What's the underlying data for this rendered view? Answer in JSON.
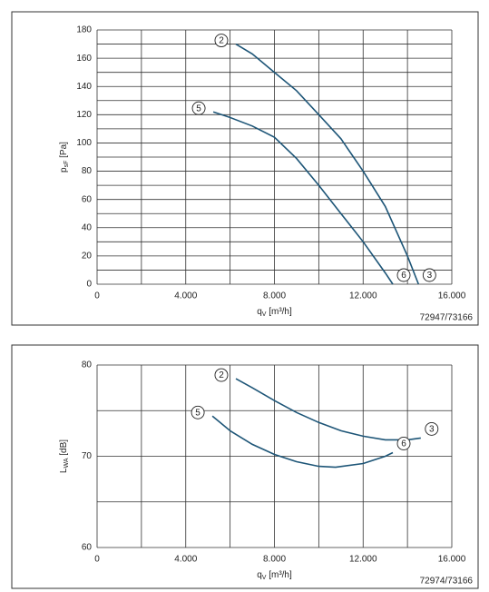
{
  "chart_data": [
    {
      "type": "line",
      "ylabel": {
        "main": "p",
        "sub": "sF",
        "unit": " [Pa]"
      },
      "xlabel": {
        "main": "q",
        "sub": "V",
        "unit": " [m³/h]"
      },
      "note": "72947/73166",
      "xlim": [
        0,
        16000
      ],
      "xticks": [
        0,
        {
          "value": 4000,
          "label": "4.000"
        },
        {
          "value": 8000,
          "label": "8.000"
        },
        {
          "value": 12000,
          "label": "12.000"
        },
        {
          "value": 16000,
          "label": "16.000"
        }
      ],
      "x_minor_grid": [
        2000,
        6000,
        10000,
        14000
      ],
      "ylim": [
        0,
        180
      ],
      "yticks": [
        0,
        20,
        40,
        60,
        80,
        100,
        120,
        140,
        160,
        180
      ],
      "y_minor_grid": [
        10,
        30,
        50,
        70,
        90,
        110,
        130,
        150,
        170
      ],
      "grid": true,
      "series": [
        {
          "name": "2",
          "end_label": "3",
          "color": "#1d5577",
          "x": [
            6260,
            7000,
            8000,
            9000,
            10000,
            11000,
            12000,
            13000,
            14000,
            14500
          ],
          "values": [
            170,
            163,
            150,
            137,
            120,
            103,
            80,
            55,
            20,
            0
          ]
        },
        {
          "name": "5",
          "end_label": "6",
          "color": "#1d5577",
          "x": [
            5240,
            6000,
            7000,
            8000,
            9000,
            10000,
            11000,
            12000,
            13000,
            13340
          ],
          "values": [
            122,
            118,
            112,
            104,
            89,
            70,
            50,
            30,
            8,
            0
          ]
        }
      ]
    },
    {
      "type": "line",
      "ylabel": {
        "main": "L",
        "sub": "WA",
        "unit": " [dB]"
      },
      "xlabel": {
        "main": "q",
        "sub": "V",
        "unit": " [m³/h]"
      },
      "note": "72974/73166",
      "xlim": [
        0,
        16000
      ],
      "xticks": [
        0,
        {
          "value": 4000,
          "label": "4.000"
        },
        {
          "value": 8000,
          "label": "8.000"
        },
        {
          "value": 12000,
          "label": "12.000"
        },
        {
          "value": 16000,
          "label": "16.000"
        }
      ],
      "x_minor_grid": [
        2000,
        6000,
        10000,
        14000
      ],
      "ylim": [
        60,
        80
      ],
      "yticks": [
        60,
        70,
        80
      ],
      "y_minor_grid": [
        65,
        75
      ],
      "grid": true,
      "series": [
        {
          "name": "2",
          "end_label": "3",
          "color": "#1d5577",
          "x": [
            6260,
            7000,
            8000,
            9000,
            10000,
            11000,
            12000,
            13000,
            14000,
            14600
          ],
          "values": [
            78.5,
            77.5,
            76.1,
            74.8,
            73.7,
            72.8,
            72.2,
            71.8,
            71.8,
            72.0
          ]
        },
        {
          "name": "5",
          "end_label": "6",
          "color": "#1d5577",
          "x": [
            5200,
            6000,
            7000,
            8000,
            9000,
            10000,
            10760,
            12000,
            13000,
            13340
          ],
          "values": [
            74.4,
            72.8,
            71.3,
            70.2,
            69.4,
            68.9,
            68.8,
            69.2,
            70.0,
            70.4
          ]
        }
      ]
    }
  ]
}
